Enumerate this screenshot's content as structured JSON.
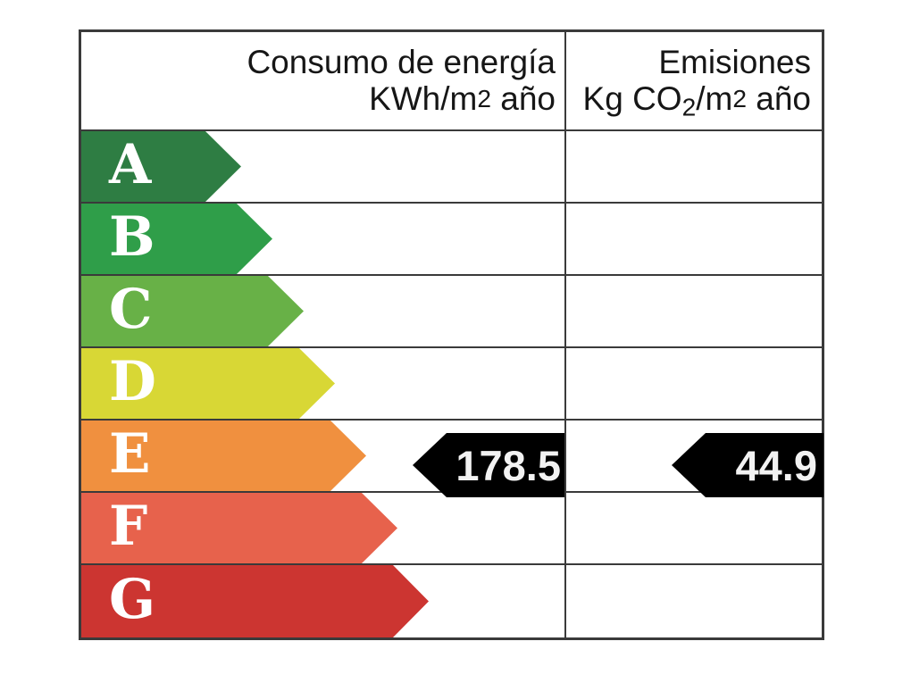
{
  "header": {
    "consumption": {
      "line1": "Consumo de energía",
      "line2_pre": "KWh/m",
      "line2_sup": "2",
      "line2_post": " año"
    },
    "emissions": {
      "line1": "Emisiones",
      "line2_pre": "Kg CO",
      "line2_sub": "2",
      "line2_mid": "/m",
      "line2_sup": "2",
      "line2_post": " año"
    }
  },
  "ratings": [
    {
      "letter": "A",
      "color": "#2e7d43"
    },
    {
      "letter": "B",
      "color": "#2f9e49"
    },
    {
      "letter": "C",
      "color": "#68b147"
    },
    {
      "letter": "D",
      "color": "#d8d735"
    },
    {
      "letter": "E",
      "color": "#f0903f"
    },
    {
      "letter": "F",
      "color": "#e7624c"
    },
    {
      "letter": "G",
      "color": "#cc3531"
    }
  ],
  "values": {
    "consumption": "178.5",
    "emissions": "44.9"
  },
  "value_arrow_color": "#000000",
  "border_color": "#3a3a3a",
  "chart_data": {
    "type": "table",
    "title": "Escala de calificación energética (certificado energético)",
    "columns": [
      "Consumo de energía KWh/m2 año",
      "Emisiones Kg CO2/m2 año"
    ],
    "categories": [
      "A",
      "B",
      "C",
      "D",
      "E",
      "F",
      "G"
    ],
    "band_colors": [
      "#2e7d43",
      "#2f9e49",
      "#68b147",
      "#d8d735",
      "#f0903f",
      "#e7624c",
      "#cc3531"
    ],
    "selected_rating": "E",
    "values": {
      "consumo_kwh_m2_ano": 178.5,
      "emisiones_kg_co2_m2_ano": 44.9
    },
    "legend_position": "none",
    "grid": true
  }
}
